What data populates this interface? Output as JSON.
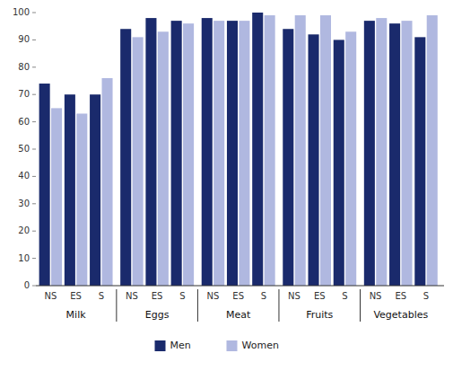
{
  "chart_data": {
    "type": "bar",
    "categories": [
      "NS",
      "ES",
      "S",
      "NS",
      "ES",
      "S",
      "NS",
      "ES",
      "S",
      "NS",
      "ES",
      "S",
      "NS",
      "ES",
      "S"
    ],
    "group_labels": [
      "Milk",
      "Eggs",
      "Meat",
      "Fruits",
      "Vegetables"
    ],
    "series": [
      {
        "name": "Men",
        "color": "#1a2a6c",
        "values": [
          74,
          70,
          70,
          94,
          98,
          97,
          98,
          97,
          100,
          94,
          92,
          90,
          97,
          96,
          91
        ]
      },
      {
        "name": "Women",
        "color": "#b0b8e0",
        "values": [
          65,
          63,
          76,
          91,
          93,
          96,
          97,
          97,
          99,
          99,
          99,
          93,
          98,
          97,
          99
        ]
      }
    ],
    "ylim": [
      0,
      100
    ],
    "yticks": [
      0,
      10,
      20,
      30,
      40,
      50,
      60,
      70,
      80,
      90,
      100
    ],
    "grid": false,
    "legend": "bottom"
  }
}
